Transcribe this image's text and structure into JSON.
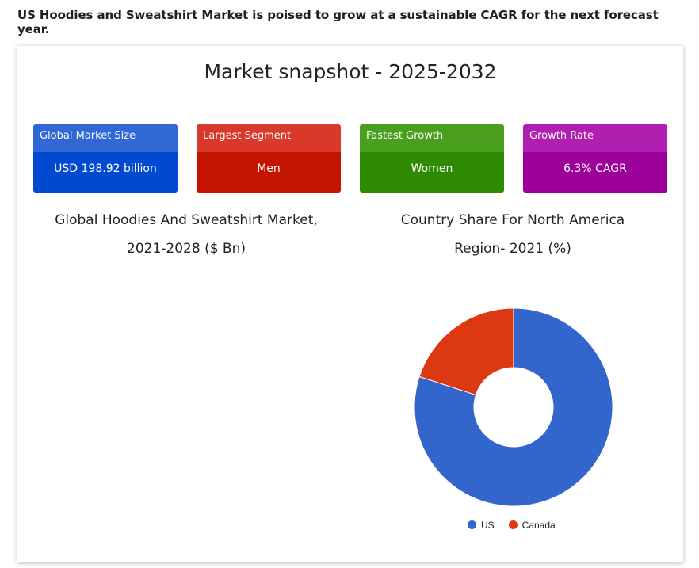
{
  "headline": "US Hoodies and Sweatshirt Market is poised to grow at a sustainable CAGR for the next forecast year.",
  "snapshot": {
    "title": "Market snapshot - 2025-2032"
  },
  "stats": [
    {
      "label": "Global Market Size",
      "value": "USD 198.92 billion",
      "head_color": "#3268d6",
      "body_color": "#0049d1"
    },
    {
      "label": "Largest Segment",
      "value": "Men",
      "head_color": "#d8392b",
      "body_color": "#c41400"
    },
    {
      "label": "Fastest Growth",
      "value": "Women",
      "head_color": "#4a9f1e",
      "body_color": "#2e8a00"
    },
    {
      "label": "Growth Rate",
      "value": "6.3% CAGR",
      "head_color": "#b11fb1",
      "body_color": "#9b009b"
    }
  ],
  "left_chart": {
    "title_line1": "Global Hoodies And Sweatshirt Market,",
    "title_line2": "2021-2028 ($ Bn)"
  },
  "right_chart": {
    "title_line1": "Country Share For North America",
    "title_line2": "Region- 2021 (%)"
  },
  "chart_data": {
    "type": "pie",
    "title": "Country Share For North America Region- 2021 (%)",
    "donut": true,
    "legend_position": "bottom",
    "slices": [
      {
        "label": "US",
        "value": 80,
        "color": "#3366cc"
      },
      {
        "label": "Canada",
        "value": 20,
        "color": "#dc3912"
      }
    ]
  }
}
